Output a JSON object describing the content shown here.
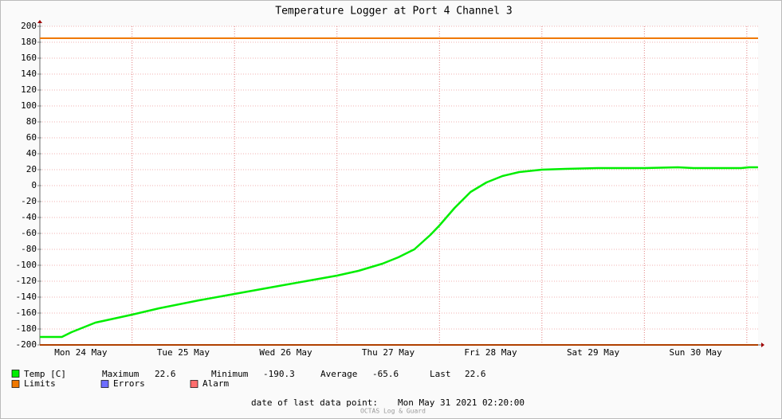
{
  "chart_data": {
    "type": "line",
    "title": "Temperature Logger at Port 4 Channel 3",
    "xlim": [
      0.1,
      7.11
    ],
    "xticks": [
      {
        "value": 0.5,
        "label": "Mon 24 May"
      },
      {
        "value": 1.5,
        "label": "Tue 25 May"
      },
      {
        "value": 2.5,
        "label": "Wed 26 May"
      },
      {
        "value": 3.5,
        "label": "Thu 27 May"
      },
      {
        "value": 4.5,
        "label": "Fri 28 May"
      },
      {
        "value": 5.5,
        "label": "Sat 29 May"
      },
      {
        "value": 6.5,
        "label": "Sun 30 May"
      }
    ],
    "xgrid": [
      1,
      2,
      3,
      4,
      5,
      6,
      7
    ],
    "ylim": [
      -200,
      200
    ],
    "yticks": [
      -200,
      -180,
      -160,
      -140,
      -120,
      -100,
      -80,
      -60,
      -40,
      -20,
      0,
      20,
      40,
      60,
      80,
      100,
      120,
      140,
      160,
      180,
      200
    ],
    "grid": true,
    "series": [
      {
        "name": "Temp [C]",
        "color": "#00ee00",
        "x": [
          0.1,
          0.315,
          0.409,
          0.642,
          1.0,
          1.265,
          1.654,
          2.0,
          2.432,
          3.0,
          3.21,
          3.444,
          3.599,
          3.755,
          3.911,
          4.0,
          4.148,
          4.304,
          4.459,
          4.615,
          4.778,
          5.0,
          5.233,
          5.545,
          6.0,
          6.327,
          6.479,
          6.946,
          7.023,
          7.109
        ],
        "values": [
          -190,
          -190,
          -184,
          -172,
          -162,
          -154,
          -144,
          -136,
          -126,
          -113,
          -107,
          -98,
          -90,
          -80,
          -62,
          -50,
          -28,
          -8,
          4,
          12,
          17,
          20,
          21,
          22,
          22,
          23,
          22,
          22,
          23,
          23
        ]
      }
    ],
    "limits": {
      "name": "Limits",
      "color": "#f07800",
      "values": [
        185,
        -200
      ]
    },
    "legend_extra": [
      {
        "name": "Errors",
        "color": "#6e6eff"
      },
      {
        "name": "Alarm",
        "color": "#ff6e6e"
      }
    ],
    "legend_stats": [
      {
        "label": "Maximum",
        "value": 22.6
      },
      {
        "label": "Minimum",
        "value": -190.3
      },
      {
        "label": "Average",
        "value": -65.6
      },
      {
        "label": "Last",
        "value": 22.6
      }
    ],
    "footer_label": "date of last data point:",
    "footer_value": "Mon May 31 2021 02:20:00",
    "credit": "OCTAS Log & Guard"
  }
}
